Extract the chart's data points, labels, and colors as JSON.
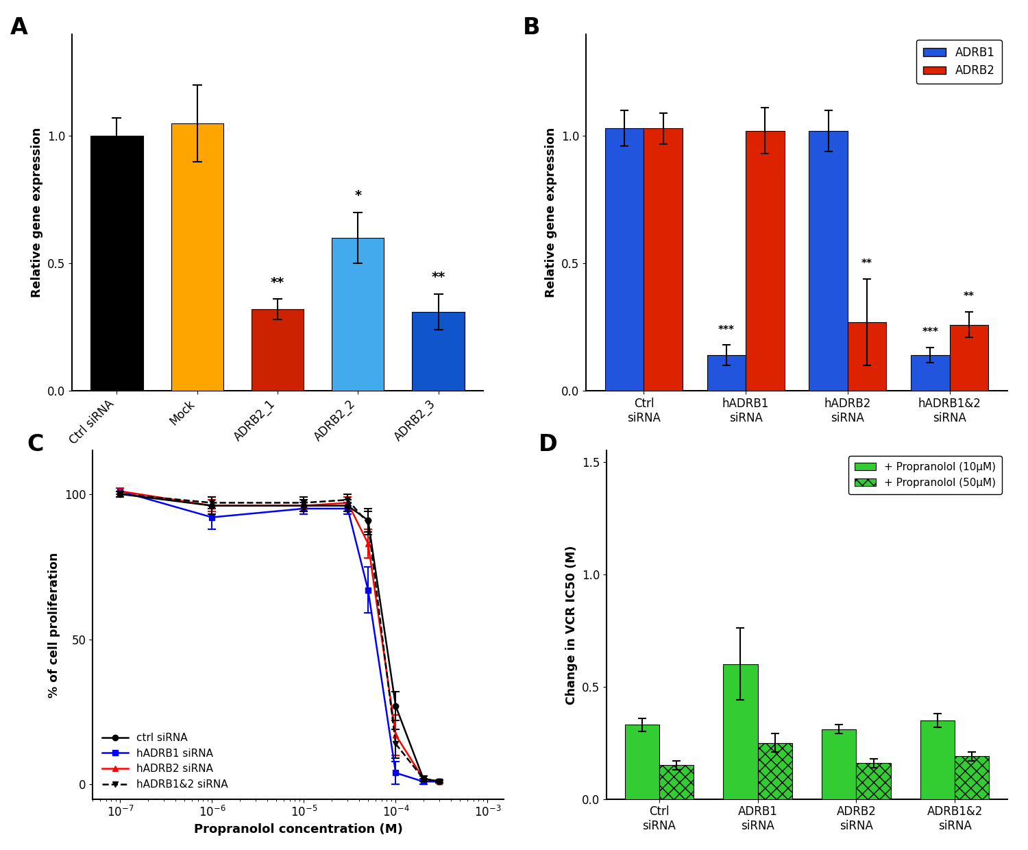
{
  "panel_A": {
    "categories": [
      "Ctrl siRNA",
      "Mock",
      "ADRB2_1",
      "ADRB2_2",
      "ADRB2_3"
    ],
    "values": [
      1.0,
      1.05,
      0.32,
      0.6,
      0.31
    ],
    "errors": [
      0.07,
      0.15,
      0.04,
      0.1,
      0.07
    ],
    "colors": [
      "#000000",
      "#FFA500",
      "#CC2200",
      "#44AAEE",
      "#1155CC"
    ],
    "sig_labels": [
      "",
      "",
      "**",
      "*",
      "**"
    ],
    "ylabel": "Relative gene expression",
    "ylim": [
      0,
      1.4
    ],
    "yticks": [
      0.0,
      0.5,
      1.0
    ]
  },
  "panel_B": {
    "categories": [
      "Ctrl\nsiRNA",
      "hADRB1\nsiRNA",
      "hADRB2\nsiRNA",
      "hADRB1&2\nsiRNA"
    ],
    "adrb1_values": [
      1.03,
      0.14,
      1.02,
      0.14
    ],
    "adrb2_values": [
      1.03,
      1.02,
      0.27,
      0.26
    ],
    "adrb1_errors": [
      0.07,
      0.04,
      0.08,
      0.03
    ],
    "adrb2_errors": [
      0.06,
      0.09,
      0.17,
      0.05
    ],
    "adrb1_sig": [
      "",
      "***",
      "",
      "***"
    ],
    "adrb2_sig": [
      "",
      "",
      "**",
      "**"
    ],
    "color_adrb1": "#2255DD",
    "color_adrb2": "#DD2200",
    "ylabel": "Relative gene expression",
    "ylim": [
      0,
      1.4
    ],
    "yticks": [
      0.0,
      0.5,
      1.0
    ]
  },
  "panel_C": {
    "x_values": [
      1e-07,
      1e-06,
      1e-05,
      3e-05,
      5e-05,
      0.0001,
      0.0002,
      0.0003
    ],
    "ctrl_y": [
      100,
      96,
      96,
      96,
      91,
      27,
      2,
      1
    ],
    "ctrl_err": [
      1,
      3,
      2,
      2,
      4,
      5,
      1,
      0.5
    ],
    "adrb1_y": [
      101,
      92,
      95,
      95,
      67,
      4,
      1,
      1
    ],
    "adrb1_err": [
      1,
      4,
      2,
      2,
      8,
      4,
      1,
      0.5
    ],
    "adrb2_y": [
      101,
      96,
      96,
      97,
      83,
      17,
      2,
      1
    ],
    "adrb2_err": [
      1,
      2,
      2,
      2,
      5,
      7,
      1,
      0.5
    ],
    "adrb12_y": [
      100,
      97,
      97,
      98,
      90,
      14,
      2,
      1
    ],
    "adrb12_err": [
      1,
      2,
      2,
      2,
      4,
      5,
      1,
      0.5
    ],
    "xlabel": "Propranolol concentration (M)",
    "ylabel": "% of cell proliferation",
    "ylim": [
      -5,
      115
    ],
    "yticks": [
      0,
      50,
      100
    ]
  },
  "panel_D": {
    "categories": [
      "Ctrl\nsiRNA",
      "ADRB1\nsiRNA",
      "ADRB2\nsiRNA",
      "ADRB1&2\nsiRNA"
    ],
    "prop10_values": [
      0.33,
      0.6,
      0.31,
      0.35
    ],
    "prop50_values": [
      0.15,
      0.25,
      0.16,
      0.19
    ],
    "prop10_errors": [
      0.03,
      0.16,
      0.02,
      0.03
    ],
    "prop50_errors": [
      0.02,
      0.04,
      0.02,
      0.02
    ],
    "color_green": "#33CC33",
    "ylabel": "Change in VCR IC50 (M)",
    "ylim": [
      0,
      1.55
    ],
    "yticks": [
      0.0,
      0.5,
      1.0,
      1.5
    ]
  }
}
